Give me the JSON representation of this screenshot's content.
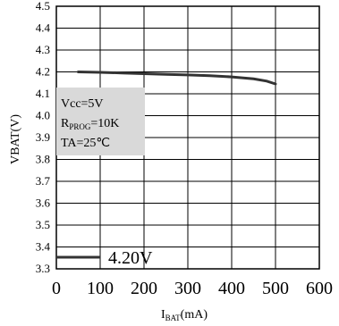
{
  "chart_data": {
    "type": "line",
    "xlabel": {
      "main": "I",
      "sub": "BAT",
      "tail": "(mA)"
    },
    "ylabel": "VBAT(V)",
    "xlim": [
      0,
      600
    ],
    "ylim": [
      3.3,
      4.5
    ],
    "x_ticks": [
      "0",
      "100",
      "200",
      "300",
      "400",
      "500",
      "600"
    ],
    "y_ticks": [
      "3.3",
      "3.4",
      "3.5",
      "3.6",
      "3.7",
      "3.8",
      "3.9",
      "4.0",
      "4.1",
      "4.2",
      "4.3",
      "4.4",
      "4.5"
    ],
    "grid": true,
    "series": [
      {
        "name": "4.20V",
        "color": "#333333",
        "x": [
          50,
          100,
          150,
          200,
          250,
          300,
          350,
          400,
          450,
          480,
          500
        ],
        "y": [
          4.2,
          4.198,
          4.195,
          4.192,
          4.189,
          4.186,
          4.183,
          4.177,
          4.168,
          4.158,
          4.145
        ]
      }
    ],
    "annotation": {
      "line1": "Vcc=5V",
      "line2_main": "R",
      "line2_sub": "PROG",
      "line2_tail": "=10K",
      "line3": "TA=25℃",
      "bg_color": "#d9d9d9"
    },
    "legend_position": "bottom-left"
  }
}
